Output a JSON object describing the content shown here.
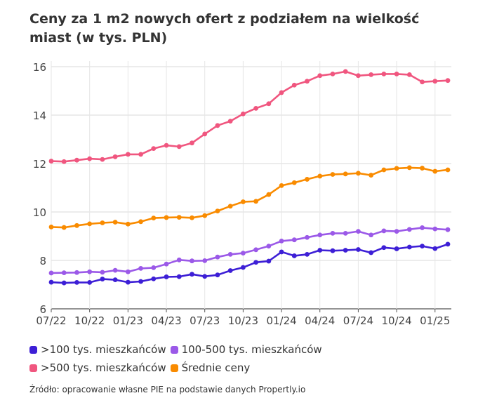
{
  "chart_data": {
    "type": "line",
    "title": "Ceny za 1 m2 nowych ofert z podziałem na wielkość miast (w tys. PLN)",
    "xlabel": "",
    "ylabel": "",
    "ylim": [
      6,
      16
    ],
    "yticks": [
      6,
      8,
      10,
      12,
      14,
      16
    ],
    "x_tick_labels": [
      "07/22",
      "10/22",
      "01/23",
      "04/23",
      "07/23",
      "10/23",
      "01/24",
      "04/24",
      "07/24",
      "10/24",
      "01/25"
    ],
    "x_tick_every": 3,
    "grid": true,
    "legend_position": "bottom",
    "series": [
      {
        "name": ">100 tys. mieszkańców",
        "color": "#3d1fd6",
        "values": [
          7.1,
          7.07,
          7.09,
          7.09,
          7.23,
          7.2,
          7.1,
          7.13,
          7.24,
          7.32,
          7.33,
          7.43,
          7.34,
          7.4,
          7.58,
          7.71,
          7.92,
          7.97,
          8.35,
          8.19,
          8.25,
          8.42,
          8.4,
          8.42,
          8.45,
          8.32,
          8.53,
          8.48,
          8.55,
          8.59,
          8.49,
          8.67
        ]
      },
      {
        "name": "100-500 tys. mieszkańców",
        "color": "#9b59e8",
        "values": [
          7.48,
          7.49,
          7.5,
          7.53,
          7.51,
          7.59,
          7.53,
          7.67,
          7.7,
          7.85,
          8.02,
          7.98,
          7.99,
          8.14,
          8.25,
          8.3,
          8.44,
          8.59,
          8.8,
          8.85,
          8.95,
          9.05,
          9.12,
          9.12,
          9.2,
          9.05,
          9.22,
          9.2,
          9.28,
          9.35,
          9.3,
          9.27
        ]
      },
      {
        "name": ">500 tys. mieszkańców",
        "color": "#f0567f",
        "values": [
          12.1,
          12.08,
          12.14,
          12.2,
          12.17,
          12.28,
          12.38,
          12.38,
          12.62,
          12.75,
          12.7,
          12.85,
          13.22,
          13.57,
          13.75,
          14.05,
          14.28,
          14.47,
          14.93,
          15.24,
          15.4,
          15.63,
          15.7,
          15.8,
          15.63,
          15.67,
          15.7,
          15.7,
          15.67,
          15.37,
          15.4,
          15.43
        ]
      },
      {
        "name": "Średnie ceny",
        "color": "#f98b00",
        "values": [
          9.38,
          9.36,
          9.44,
          9.51,
          9.55,
          9.58,
          9.5,
          9.6,
          9.75,
          9.77,
          9.78,
          9.76,
          9.85,
          10.04,
          10.24,
          10.42,
          10.44,
          10.72,
          11.09,
          11.21,
          11.35,
          11.48,
          11.55,
          11.57,
          11.6,
          11.52,
          11.74,
          11.8,
          11.83,
          11.81,
          11.68,
          11.74
        ]
      }
    ]
  },
  "source": "Źródło: opracowanie własne PIE na podstawie danych Propertly.io"
}
